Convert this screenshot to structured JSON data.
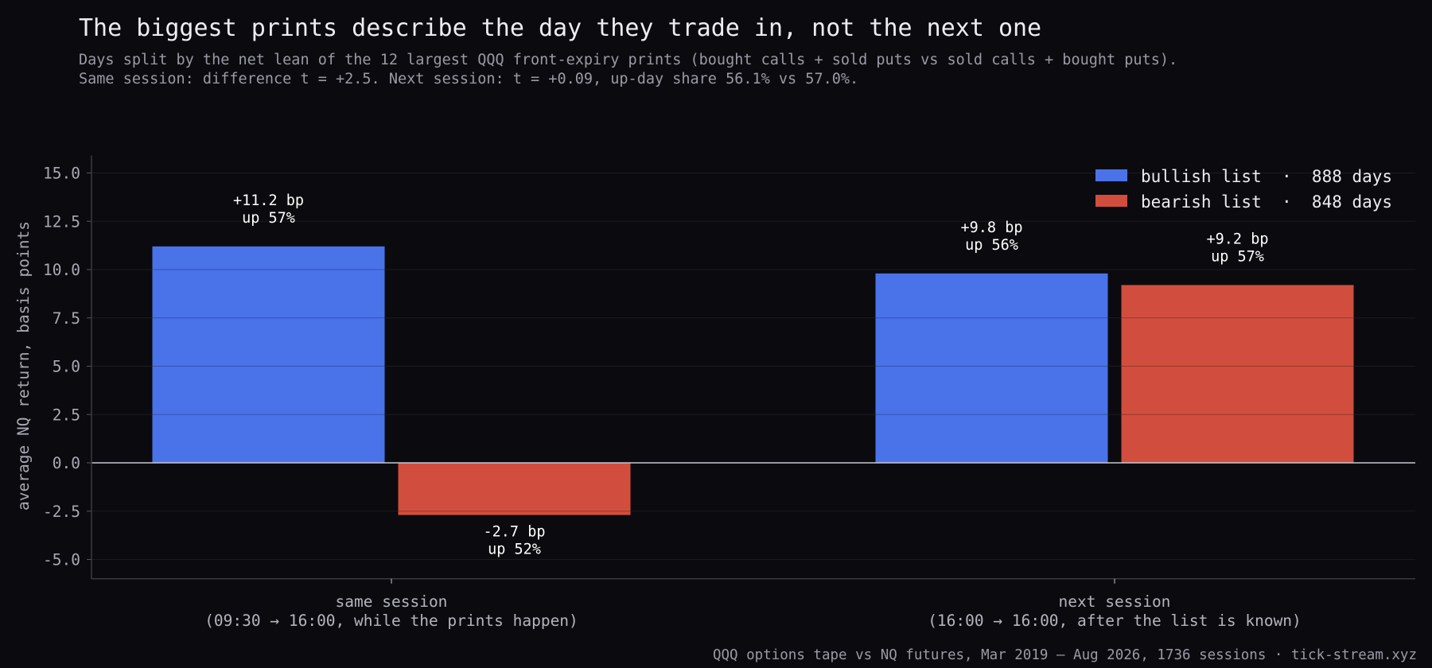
{
  "title": "The biggest prints describe the day they trade in, not the next one",
  "subtitle_lines": [
    "Days split by the net lean of the 12 largest QQQ front-expiry prints (bought calls + sold puts vs sold calls + bought puts).",
    "Same session: difference t = +2.5. Next session: t = +0.09, up-day share 56.1% vs 57.0%."
  ],
  "source": "QQQ options tape vs NQ futures, Mar 2019 – Aug 2026, 1736 sessions · tick-stream.xyz",
  "colors": {
    "background": "#0b0b0f",
    "bullish": "#4a73ea",
    "bearish": "#d14e3e",
    "zero_line": "#c8c8d0",
    "grid": "#1a1a20"
  },
  "legend": [
    {
      "label": "bullish list  ·  888 days",
      "color": "#4a73ea"
    },
    {
      "label": "bearish list  ·  848 days",
      "color": "#d14e3e"
    }
  ],
  "chart_data": {
    "type": "bar",
    "ylabel": "average NQ return, basis points",
    "ylim": [
      -6,
      15.9
    ],
    "yticks": [
      15.0,
      12.5,
      10.0,
      7.5,
      5.0,
      2.5,
      0.0,
      -2.5,
      -5.0
    ],
    "grid": true,
    "legend_position": "top-right",
    "categories": [
      {
        "line1": "same session",
        "line2": "(09:30 → 16:00, while the prints happen)"
      },
      {
        "line1": "next session",
        "line2": "(16:00 → 16:00, after the list is known)"
      }
    ],
    "series": [
      {
        "name": "bullish list",
        "values": [
          11.2,
          9.8
        ],
        "labels": [
          [
            "+11.2 bp",
            "up 57%"
          ],
          [
            "+9.8 bp",
            "up 56%"
          ]
        ]
      },
      {
        "name": "bearish list",
        "values": [
          -2.7,
          9.2
        ],
        "labels": [
          [
            "-2.7 bp",
            "up 52%"
          ],
          [
            "+9.2 bp",
            "up 57%"
          ]
        ]
      }
    ]
  }
}
